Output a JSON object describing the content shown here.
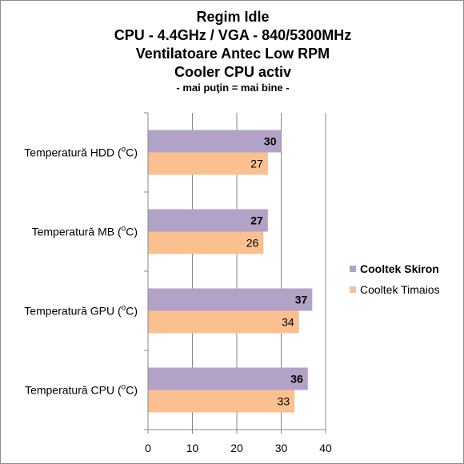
{
  "chart_data": {
    "type": "bar",
    "orientation": "horizontal",
    "title_lines": [
      "Regim Idle",
      "CPU - 4.4GHz / VGA - 840/5300MHz",
      "Ventilatoare Antec Low RPM",
      "Cooler CPU activ"
    ],
    "subtitle": "- mai puţin = mai bine -",
    "categories": [
      "Temperatură  HDD (ºC)",
      "Temperatură  MB (ºC)",
      "Temperatură  GPU (ºC)",
      "Temperatură  CPU (ºC)"
    ],
    "category_labels": [
      {
        "prefix": "Temperatură  HDD (",
        "sup": "o",
        "suffix": "C)"
      },
      {
        "prefix": "Temperatură  MB (",
        "sup": "o",
        "suffix": "C)"
      },
      {
        "prefix": "Temperatură  GPU (",
        "sup": "o",
        "suffix": "C)"
      },
      {
        "prefix": "Temperatură  CPU (",
        "sup": "o",
        "suffix": "C)"
      }
    ],
    "series": [
      {
        "name": "Cooltek Skiron",
        "values": [
          30,
          27,
          37,
          36
        ],
        "color": "#b3a2c7",
        "label_bold": true
      },
      {
        "name": "Cooltek Timaios",
        "values": [
          27,
          26,
          34,
          33
        ],
        "color": "#fac090",
        "label_bold": false
      }
    ],
    "xlim": [
      0,
      40
    ],
    "xticks": [
      0,
      10,
      20,
      30,
      40
    ],
    "grid": true,
    "legend_position": "right"
  }
}
